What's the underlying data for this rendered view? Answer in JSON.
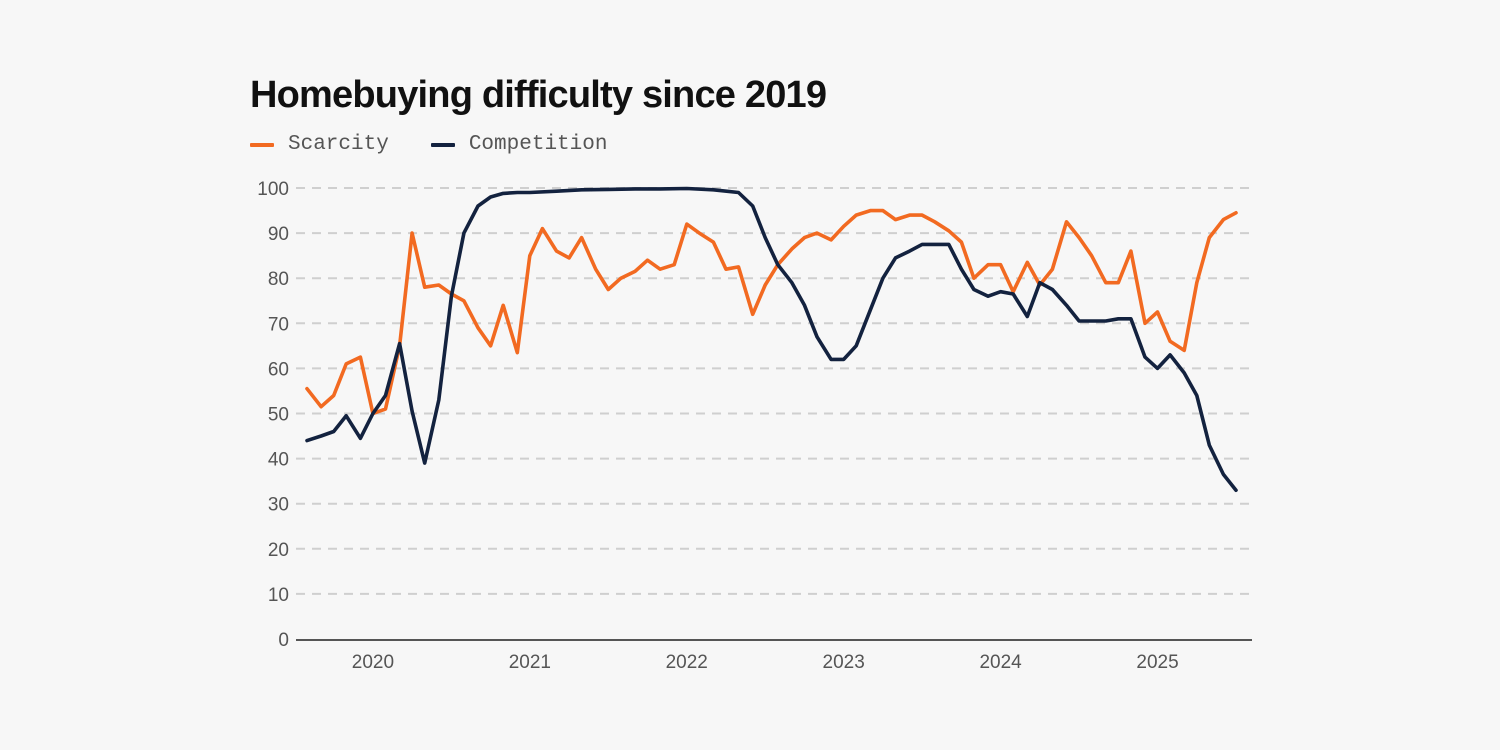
{
  "chart_data": {
    "type": "line",
    "title": "Homebuying difficulty since 2019",
    "xlabel": "",
    "ylabel": "",
    "ylim": [
      0,
      100
    ],
    "xlim": [
      2019.58,
      2025.5
    ],
    "y_ticks": [
      "0",
      "10",
      "20",
      "30",
      "40",
      "50",
      "60",
      "70",
      "80",
      "90",
      "100"
    ],
    "x_ticks": [
      {
        "value": 2020,
        "label": "2020"
      },
      {
        "value": 2021,
        "label": "2021"
      },
      {
        "value": 2022,
        "label": "2022"
      },
      {
        "value": 2023,
        "label": "2023"
      },
      {
        "value": 2024,
        "label": "2024"
      },
      {
        "value": 2025,
        "label": "2025"
      }
    ],
    "grid": "horizontal-dashed",
    "legend_position": "top-left",
    "series": [
      {
        "name": "Scarcity",
        "color": "#f26a21",
        "points": [
          [
            2019.58,
            55.5
          ],
          [
            2019.67,
            51.5
          ],
          [
            2019.75,
            54
          ],
          [
            2019.83,
            61
          ],
          [
            2019.92,
            62.5
          ],
          [
            2020.0,
            50
          ],
          [
            2020.08,
            51
          ],
          [
            2020.17,
            65
          ],
          [
            2020.25,
            90
          ],
          [
            2020.33,
            78
          ],
          [
            2020.42,
            78.5
          ],
          [
            2020.5,
            76.5
          ],
          [
            2020.58,
            75
          ],
          [
            2020.67,
            69
          ],
          [
            2020.75,
            65
          ],
          [
            2020.83,
            74
          ],
          [
            2020.92,
            63.5
          ],
          [
            2021.0,
            85
          ],
          [
            2021.08,
            91
          ],
          [
            2021.17,
            86
          ],
          [
            2021.25,
            84.5
          ],
          [
            2021.33,
            89
          ],
          [
            2021.42,
            82
          ],
          [
            2021.5,
            77.5
          ],
          [
            2021.58,
            80
          ],
          [
            2021.67,
            81.5
          ],
          [
            2021.75,
            84
          ],
          [
            2021.83,
            82
          ],
          [
            2021.92,
            83
          ],
          [
            2022.0,
            92
          ],
          [
            2022.08,
            90
          ],
          [
            2022.17,
            88
          ],
          [
            2022.25,
            82
          ],
          [
            2022.33,
            82.5
          ],
          [
            2022.42,
            72
          ],
          [
            2022.5,
            78.5
          ],
          [
            2022.58,
            83
          ],
          [
            2022.67,
            86.5
          ],
          [
            2022.75,
            89
          ],
          [
            2022.83,
            90
          ],
          [
            2022.92,
            88.5
          ],
          [
            2023.0,
            91.5
          ],
          [
            2023.08,
            94
          ],
          [
            2023.17,
            95
          ],
          [
            2023.25,
            95
          ],
          [
            2023.33,
            93
          ],
          [
            2023.42,
            94
          ],
          [
            2023.5,
            94
          ],
          [
            2023.58,
            92.5
          ],
          [
            2023.67,
            90.5
          ],
          [
            2023.75,
            88
          ],
          [
            2023.83,
            80
          ],
          [
            2023.92,
            83
          ],
          [
            2024.0,
            83
          ],
          [
            2024.08,
            77
          ],
          [
            2024.17,
            83.5
          ],
          [
            2024.25,
            78.5
          ],
          [
            2024.33,
            82
          ],
          [
            2024.42,
            92.5
          ],
          [
            2024.5,
            89
          ],
          [
            2024.58,
            85
          ],
          [
            2024.67,
            79
          ],
          [
            2024.75,
            79
          ],
          [
            2024.83,
            86
          ],
          [
            2024.92,
            70
          ],
          [
            2025.0,
            72.5
          ],
          [
            2025.08,
            66
          ],
          [
            2025.17,
            64
          ],
          [
            2025.25,
            79
          ],
          [
            2025.33,
            89
          ],
          [
            2025.42,
            93
          ],
          [
            2025.5,
            94.5
          ]
        ]
      },
      {
        "name": "Competition",
        "color": "#13223f",
        "points": [
          [
            2019.58,
            44
          ],
          [
            2019.67,
            45
          ],
          [
            2019.75,
            46
          ],
          [
            2019.83,
            49.5
          ],
          [
            2019.92,
            44.5
          ],
          [
            2020.0,
            50
          ],
          [
            2020.08,
            54
          ],
          [
            2020.17,
            65.5
          ],
          [
            2020.25,
            50.5
          ],
          [
            2020.33,
            39
          ],
          [
            2020.42,
            53
          ],
          [
            2020.5,
            76
          ],
          [
            2020.58,
            90
          ],
          [
            2020.67,
            96
          ],
          [
            2020.75,
            98
          ],
          [
            2020.83,
            98.8
          ],
          [
            2020.92,
            99
          ],
          [
            2021.0,
            99
          ],
          [
            2021.17,
            99.3
          ],
          [
            2021.33,
            99.6
          ],
          [
            2021.5,
            99.7
          ],
          [
            2021.67,
            99.8
          ],
          [
            2021.83,
            99.8
          ],
          [
            2022.0,
            99.9
          ],
          [
            2022.17,
            99.6
          ],
          [
            2022.33,
            99
          ],
          [
            2022.42,
            96
          ],
          [
            2022.5,
            89
          ],
          [
            2022.58,
            83
          ],
          [
            2022.67,
            79
          ],
          [
            2022.75,
            74
          ],
          [
            2022.83,
            67
          ],
          [
            2022.92,
            62
          ],
          [
            2023.0,
            62
          ],
          [
            2023.08,
            65
          ],
          [
            2023.17,
            73
          ],
          [
            2023.25,
            80
          ],
          [
            2023.33,
            84.5
          ],
          [
            2023.42,
            86
          ],
          [
            2023.5,
            87.5
          ],
          [
            2023.58,
            87.5
          ],
          [
            2023.67,
            87.5
          ],
          [
            2023.75,
            82
          ],
          [
            2023.83,
            77.5
          ],
          [
            2023.92,
            76
          ],
          [
            2024.0,
            77
          ],
          [
            2024.08,
            76.5
          ],
          [
            2024.17,
            71.5
          ],
          [
            2024.25,
            79
          ],
          [
            2024.33,
            77.5
          ],
          [
            2024.42,
            74
          ],
          [
            2024.5,
            70.5
          ],
          [
            2024.58,
            70.5
          ],
          [
            2024.67,
            70.5
          ],
          [
            2024.75,
            71
          ],
          [
            2024.83,
            71
          ],
          [
            2024.92,
            62.5
          ],
          [
            2025.0,
            60
          ],
          [
            2025.08,
            63
          ],
          [
            2025.17,
            59
          ],
          [
            2025.25,
            54
          ],
          [
            2025.33,
            43
          ],
          [
            2025.42,
            36.5
          ],
          [
            2025.5,
            33
          ]
        ]
      }
    ]
  }
}
